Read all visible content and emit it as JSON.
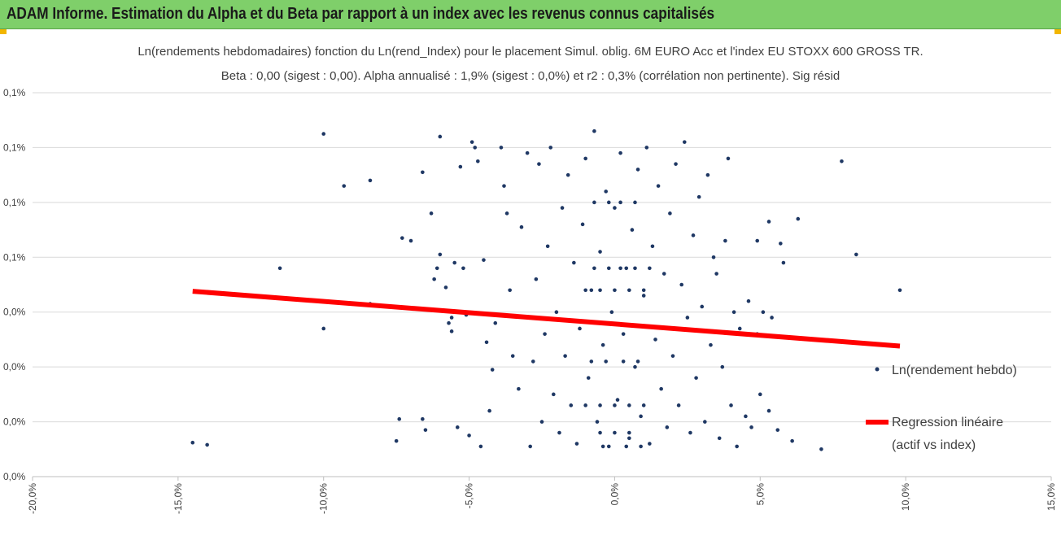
{
  "header": {
    "title": "ADAM Informe. Estimation du Alpha et du Beta par rapport à un index avec les revenus connus capitalisés"
  },
  "colors": {
    "banner": "#7fcf6a",
    "points": "#1f3864",
    "regression": "#ff0000",
    "corner": "#f2b600"
  },
  "chart_data": {
    "type": "scatter",
    "title_line1": "Ln(rendements hebdomadaires) fonction du Ln(rend_Index) pour le placement Simul. oblig. 6M EURO Acc et l'index EU STOXX 600 GROSS TR.",
    "title_line2": "Beta : 0,00 (sigest : 0,00). Alpha annualisé : 1,9% (sigest : 0,0%) et r2 : 0,3% (corrélation non pertinente). Sig résid",
    "xlim": [
      -20,
      15
    ],
    "ylim": [
      0,
      7
    ],
    "x_ticks": [
      {
        "v": -20,
        "label": "-20,0%"
      },
      {
        "v": -15,
        "label": "-15,0%"
      },
      {
        "v": -10,
        "label": "-10,0%"
      },
      {
        "v": -5,
        "label": "-5,0%"
      },
      {
        "v": 0,
        "label": "0,0%"
      },
      {
        "v": 5,
        "label": "5,0%"
      },
      {
        "v": 10,
        "label": "10,0%"
      },
      {
        "v": 15,
        "label": "15,0%"
      }
    ],
    "y_ticks": [
      {
        "v": 0,
        "label": "0,0%"
      },
      {
        "v": 1,
        "label": "0,0%"
      },
      {
        "v": 2,
        "label": "0,0%"
      },
      {
        "v": 3,
        "label": "0,0%"
      },
      {
        "v": 4,
        "label": "0,1%"
      },
      {
        "v": 5,
        "label": "0,1%"
      },
      {
        "v": 6,
        "label": "0,1%"
      },
      {
        "v": 7,
        "label": "0,1%"
      }
    ],
    "grid": "horizontal",
    "legend_position": "right",
    "series": [
      {
        "name": "Ln(rendement hebdo)",
        "kind": "scatter",
        "color": "#1f3864",
        "points": [
          [
            -14.5,
            0.62
          ],
          [
            -14.0,
            0.58
          ],
          [
            -11.5,
            3.8
          ],
          [
            -10.0,
            6.25
          ],
          [
            -10.0,
            2.7
          ],
          [
            -9.3,
            5.3
          ],
          [
            -8.4,
            5.4
          ],
          [
            -8.4,
            3.15
          ],
          [
            -7.5,
            0.65
          ],
          [
            -7.4,
            1.05
          ],
          [
            -7.3,
            4.35
          ],
          [
            -7.0,
            4.3
          ],
          [
            -6.6,
            5.55
          ],
          [
            -6.6,
            1.05
          ],
          [
            -6.5,
            0.85
          ],
          [
            -6.3,
            4.8
          ],
          [
            -6.2,
            3.6
          ],
          [
            -6.1,
            3.8
          ],
          [
            -6.0,
            6.2
          ],
          [
            -6.0,
            4.05
          ],
          [
            -5.8,
            3.45
          ],
          [
            -5.7,
            2.8
          ],
          [
            -5.6,
            2.65
          ],
          [
            -5.6,
            2.9
          ],
          [
            -5.5,
            3.9
          ],
          [
            -5.4,
            0.9
          ],
          [
            -5.3,
            5.65
          ],
          [
            -5.2,
            3.8
          ],
          [
            -5.1,
            2.95
          ],
          [
            -5.0,
            0.75
          ],
          [
            -4.9,
            6.1
          ],
          [
            -4.8,
            6.0
          ],
          [
            -4.7,
            5.75
          ],
          [
            -4.6,
            0.55
          ],
          [
            -4.5,
            3.95
          ],
          [
            -4.4,
            2.45
          ],
          [
            -4.3,
            1.2
          ],
          [
            -4.2,
            1.95
          ],
          [
            -4.1,
            2.8
          ],
          [
            -3.9,
            6.0
          ],
          [
            -3.8,
            5.3
          ],
          [
            -3.7,
            4.8
          ],
          [
            -3.6,
            3.4
          ],
          [
            -3.5,
            2.2
          ],
          [
            -3.3,
            1.6
          ],
          [
            -3.2,
            4.55
          ],
          [
            -3.0,
            5.9
          ],
          [
            -2.9,
            0.55
          ],
          [
            -2.8,
            2.1
          ],
          [
            -2.7,
            3.6
          ],
          [
            -2.6,
            5.7
          ],
          [
            -2.5,
            1.0
          ],
          [
            -2.4,
            2.6
          ],
          [
            -2.3,
            4.2
          ],
          [
            -2.2,
            6.0
          ],
          [
            -2.1,
            1.5
          ],
          [
            -2.0,
            3.0
          ],
          [
            -1.9,
            0.8
          ],
          [
            -1.8,
            4.9
          ],
          [
            -1.7,
            2.2
          ],
          [
            -1.6,
            5.5
          ],
          [
            -1.5,
            1.3
          ],
          [
            -1.4,
            3.9
          ],
          [
            -1.3,
            0.6
          ],
          [
            -1.2,
            2.7
          ],
          [
            -1.1,
            4.6
          ],
          [
            -1.0,
            5.8
          ],
          [
            -0.9,
            1.8
          ],
          [
            -0.8,
            3.4
          ],
          [
            -0.7,
            6.3
          ],
          [
            -0.6,
            1.0
          ],
          [
            -0.5,
            4.1
          ],
          [
            -0.4,
            2.4
          ],
          [
            -0.3,
            5.2
          ],
          [
            -0.2,
            0.55
          ],
          [
            -0.1,
            3.0
          ],
          [
            0.0,
            4.9
          ],
          [
            0.1,
            1.4
          ],
          [
            0.2,
            5.9
          ],
          [
            0.3,
            2.6
          ],
          [
            0.4,
            3.8
          ],
          [
            0.5,
            0.7
          ],
          [
            0.6,
            4.5
          ],
          [
            0.7,
            2.0
          ],
          [
            0.8,
            5.6
          ],
          [
            0.9,
            1.1
          ],
          [
            1.0,
            3.3
          ],
          [
            1.1,
            6.0
          ],
          [
            1.2,
            0.6
          ],
          [
            1.3,
            4.2
          ],
          [
            1.4,
            2.5
          ],
          [
            1.5,
            5.3
          ],
          [
            1.6,
            1.6
          ],
          [
            1.7,
            3.7
          ],
          [
            1.8,
            0.9
          ],
          [
            1.9,
            4.8
          ],
          [
            2.0,
            2.2
          ],
          [
            2.1,
            5.7
          ],
          [
            2.2,
            1.3
          ],
          [
            2.3,
            3.5
          ],
          [
            2.4,
            6.1
          ],
          [
            2.5,
            2.9
          ],
          [
            2.6,
            0.8
          ],
          [
            2.7,
            4.4
          ],
          [
            2.8,
            1.8
          ],
          [
            2.9,
            5.1
          ],
          [
            3.0,
            3.1
          ],
          [
            3.1,
            1.0
          ],
          [
            3.2,
            5.5
          ],
          [
            3.3,
            2.4
          ],
          [
            3.4,
            4.0
          ],
          [
            3.5,
            3.7
          ],
          [
            3.6,
            0.7
          ],
          [
            3.7,
            2.0
          ],
          [
            3.8,
            4.3
          ],
          [
            3.9,
            5.8
          ],
          [
            4.0,
            1.3
          ],
          [
            4.1,
            3.0
          ],
          [
            4.2,
            0.55
          ],
          [
            4.3,
            2.7
          ],
          [
            4.5,
            1.1
          ],
          [
            4.6,
            3.2
          ],
          [
            4.7,
            0.9
          ],
          [
            4.9,
            4.3
          ],
          [
            4.9,
            2.6
          ],
          [
            5.0,
            1.5
          ],
          [
            5.1,
            3.0
          ],
          [
            5.3,
            4.65
          ],
          [
            5.3,
            1.2
          ],
          [
            5.4,
            2.9
          ],
          [
            5.6,
            0.85
          ],
          [
            5.7,
            4.25
          ],
          [
            5.8,
            3.9
          ],
          [
            6.1,
            0.65
          ],
          [
            6.3,
            4.7
          ],
          [
            7.1,
            0.5
          ],
          [
            7.8,
            5.75
          ],
          [
            8.3,
            4.05
          ],
          [
            9.8,
            3.4
          ],
          [
            0.0,
            3.4
          ],
          [
            0.5,
            3.4
          ],
          [
            -0.5,
            3.4
          ],
          [
            1.0,
            3.4
          ],
          [
            -1.0,
            3.4
          ],
          [
            0.0,
            1.3
          ],
          [
            0.5,
            1.3
          ],
          [
            -0.5,
            1.3
          ],
          [
            1.0,
            1.3
          ],
          [
            -1.0,
            1.3
          ],
          [
            0.0,
            0.8
          ],
          [
            0.5,
            0.8
          ],
          [
            -0.5,
            0.8
          ],
          [
            0.2,
            3.8
          ],
          [
            -0.2,
            3.8
          ],
          [
            0.7,
            3.8
          ],
          [
            -0.7,
            3.8
          ],
          [
            1.2,
            3.8
          ],
          [
            0.2,
            5.0
          ],
          [
            -0.2,
            5.0
          ],
          [
            0.7,
            5.0
          ],
          [
            -0.7,
            5.0
          ],
          [
            0.3,
            2.1
          ],
          [
            -0.3,
            2.1
          ],
          [
            0.8,
            2.1
          ],
          [
            -0.8,
            2.1
          ],
          [
            0.4,
            0.55
          ],
          [
            -0.4,
            0.55
          ],
          [
            0.9,
            0.55
          ]
        ]
      },
      {
        "name": "Regression linéaire",
        "name2": "(actif vs index)",
        "kind": "line",
        "color": "#ff0000",
        "points": [
          [
            -14.5,
            3.38
          ],
          [
            9.8,
            2.38
          ]
        ]
      }
    ]
  }
}
